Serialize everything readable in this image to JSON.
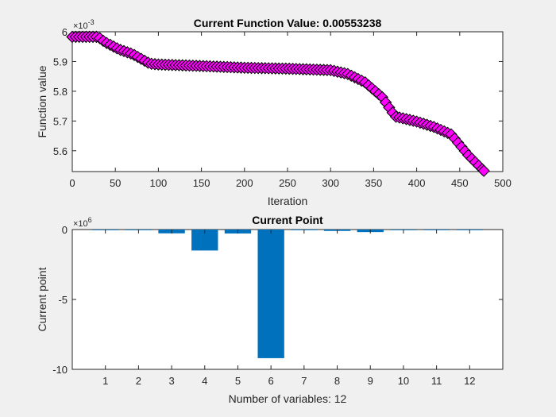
{
  "chart_data": [
    {
      "type": "scatter",
      "title": "Current Function Value: 0.00553238",
      "xlabel": "Iteration",
      "ylabel": "Function value",
      "y_exponent_base": "×10",
      "y_exponent_power": "-3",
      "xlim": [
        0,
        500
      ],
      "ylim": [
        5.53,
        6.0
      ],
      "xticks": [
        0,
        50,
        100,
        150,
        200,
        250,
        300,
        350,
        400,
        450,
        500
      ],
      "yticks": [
        5.6,
        5.7,
        5.8,
        5.9,
        6.0
      ],
      "ytick_labels": [
        "5.6",
        "5.7",
        "5.8",
        "5.9",
        "6"
      ],
      "grid": false,
      "marker": "diamond",
      "marker_face": "#ff00ff",
      "marker_edge": "#000000",
      "curve": [
        [
          0,
          5.983
        ],
        [
          30,
          5.983
        ],
        [
          38,
          5.965
        ],
        [
          55,
          5.94
        ],
        [
          70,
          5.925
        ],
        [
          90,
          5.893
        ],
        [
          100,
          5.89
        ],
        [
          150,
          5.885
        ],
        [
          200,
          5.879
        ],
        [
          250,
          5.876
        ],
        [
          300,
          5.871
        ],
        [
          320,
          5.858
        ],
        [
          340,
          5.83
        ],
        [
          360,
          5.78
        ],
        [
          375,
          5.715
        ],
        [
          390,
          5.705
        ],
        [
          400,
          5.698
        ],
        [
          420,
          5.68
        ],
        [
          440,
          5.655
        ],
        [
          460,
          5.585
        ],
        [
          478,
          5.5324
        ]
      ]
    },
    {
      "type": "bar",
      "title": "Current Point",
      "xlabel": "Number of variables: 12",
      "ylabel": "Current point",
      "y_exponent_base": "×10",
      "y_exponent_power": "6",
      "categories": [
        "1",
        "2",
        "3",
        "4",
        "5",
        "6",
        "7",
        "8",
        "9",
        "10",
        "11",
        "12"
      ],
      "values": [
        -0.01,
        -0.01,
        -0.27,
        -1.5,
        -0.28,
        -9.2,
        -0.02,
        -0.1,
        -0.18,
        -0.01,
        -0.01,
        -0.01
      ],
      "ylim": [
        -10,
        0
      ],
      "yticks": [
        -10,
        -5,
        0
      ],
      "bar_color": "#0072bd",
      "grid": false
    }
  ]
}
